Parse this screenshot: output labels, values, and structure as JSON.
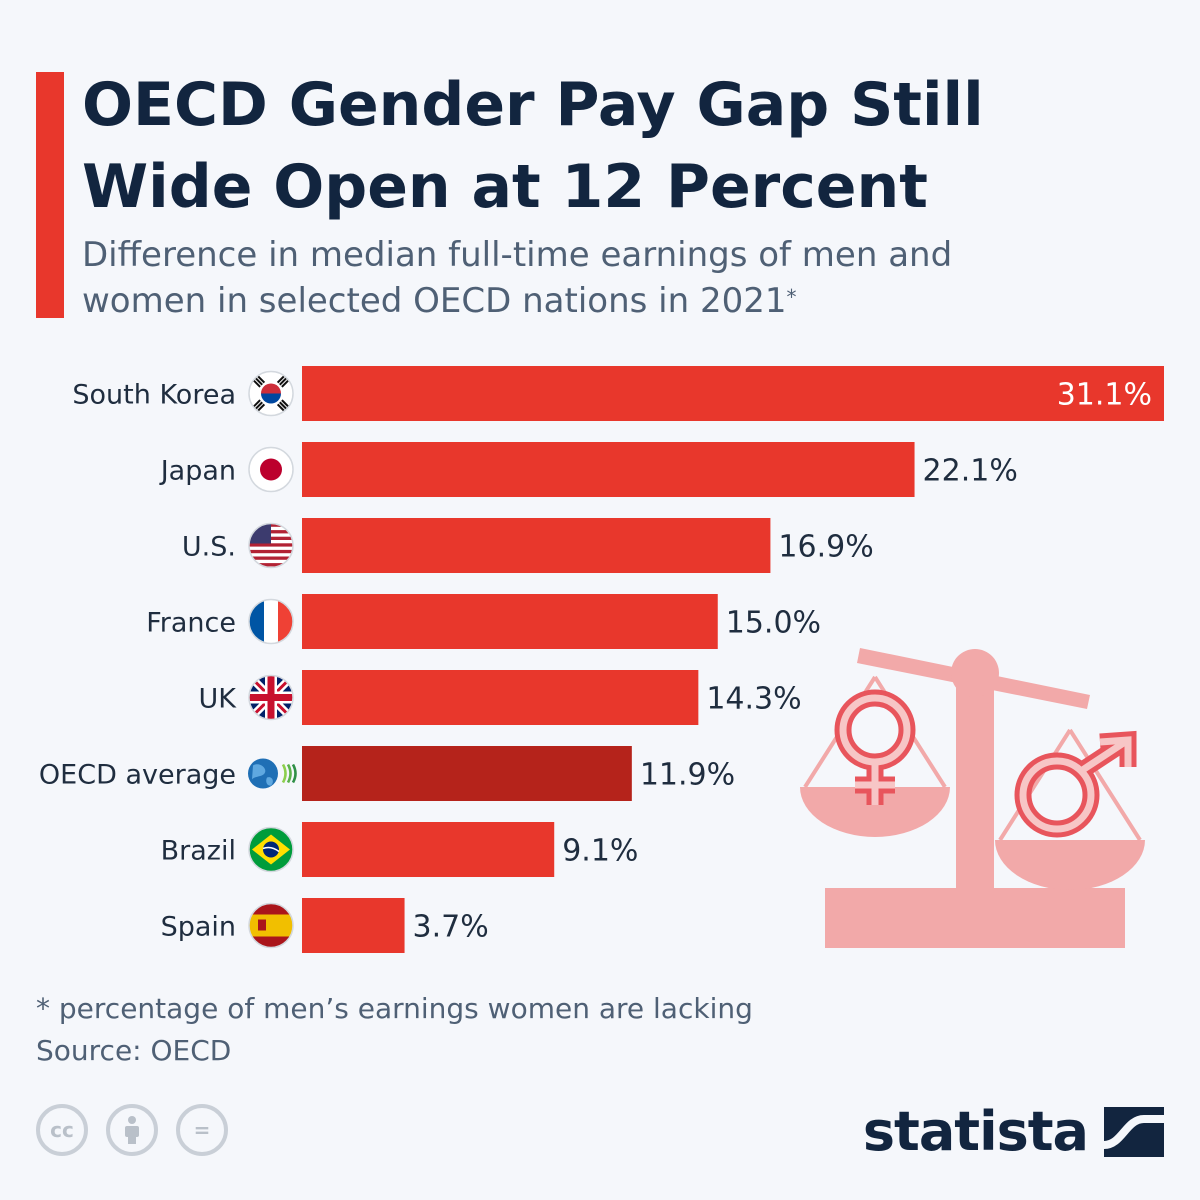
{
  "header": {
    "title_lines": [
      "OECD Gender Pay Gap Still",
      "Wide Open at 12 Percent"
    ],
    "subtitle_lines": [
      "Difference in median full-time earnings of men and",
      "women in selected OECD nations in 2021"
    ],
    "subtitle_mark": "*"
  },
  "chart_data": {
    "type": "bar",
    "orientation": "horizontal",
    "categories": [
      "South Korea",
      "Japan",
      "U.S.",
      "France",
      "UK",
      "OECD average",
      "Brazil",
      "Spain"
    ],
    "values": [
      31.1,
      22.1,
      16.9,
      15.0,
      14.3,
      11.9,
      9.1,
      3.7
    ],
    "value_labels": [
      "31.1%",
      "22.1%",
      "16.9%",
      "15.0%",
      "14.3%",
      "11.9%",
      "9.1%",
      "3.7%"
    ],
    "xlim": [
      0,
      31.1
    ],
    "grid": false,
    "legend": "none",
    "highlight_category": "OECD average",
    "colors": {
      "bar": "#e8372c",
      "highlight": "#b5231b"
    },
    "flag_icons": [
      "south-korea-flag-icon",
      "japan-flag-icon",
      "us-flag-icon",
      "france-flag-icon",
      "uk-flag-icon",
      "oecd-globe-icon",
      "brazil-flag-icon",
      "spain-flag-icon"
    ]
  },
  "illustration": {
    "icons": [
      "scales-icon",
      "female-symbol-icon",
      "male-symbol-icon"
    ],
    "color": "#f2a9a9"
  },
  "footer": {
    "footnote": "* percentage of men’s earnings women are lacking",
    "source": "Source: OECD",
    "license_icons": [
      "cc-icon",
      "attribution-icon",
      "no-derivatives-icon"
    ],
    "cc_text": "cc",
    "nd_text": "=",
    "brand": "statista"
  }
}
